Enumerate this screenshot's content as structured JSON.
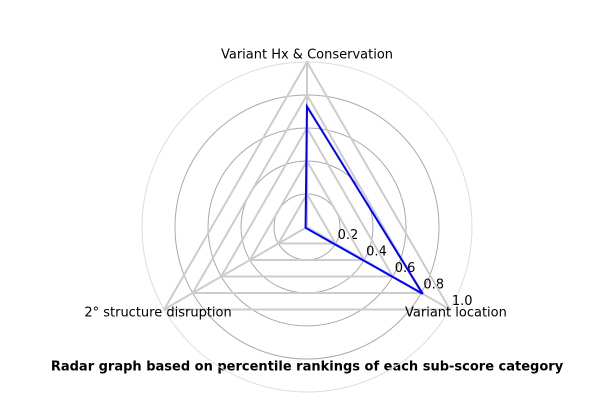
{
  "chart_data": {
    "type": "radar",
    "title": "Radar graph based on percentile rankings of each sub-score category",
    "categories": [
      "Variant Hx & Conservation",
      "2° structure disruption",
      "Variant location"
    ],
    "series": [
      {
        "color": "#0000ff",
        "values": [
          0.73,
          0.01,
          0.81
        ]
      }
    ],
    "rlim": [
      0,
      1
    ],
    "rticks": [
      0.2,
      0.4,
      0.6,
      0.8,
      {
        "value": 1,
        "label": "1.0"
      }
    ],
    "grid": true
  }
}
